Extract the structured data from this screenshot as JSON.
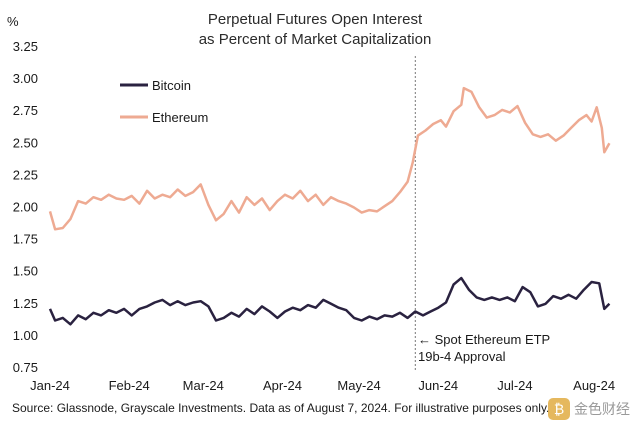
{
  "chart_data": {
    "type": "line",
    "title": [
      "Perpetual Futures Open Interest",
      "as Percent of Market Capitalization"
    ],
    "unit_label": "%",
    "ylim": [
      0.75,
      3.25
    ],
    "y_ticks": [
      "3.25",
      "3.00",
      "2.75",
      "2.50",
      "2.25",
      "2.00",
      "1.75",
      "1.50",
      "1.25",
      "1.00",
      "0.75"
    ],
    "x_ticks": [
      "Jan-24",
      "Feb-24",
      "Mar-24",
      "Apr-24",
      "May-24",
      "Jun-24",
      "Jul-24",
      "Aug-24"
    ],
    "grid": false,
    "legend_position": "top-left",
    "series": [
      {
        "name": "Bitcoin",
        "color": "#2a2240",
        "points": [
          [
            "2024-01-01",
            1.21
          ],
          [
            "2024-01-03",
            1.12
          ],
          [
            "2024-01-06",
            1.14
          ],
          [
            "2024-01-09",
            1.09
          ],
          [
            "2024-01-12",
            1.16
          ],
          [
            "2024-01-15",
            1.13
          ],
          [
            "2024-01-18",
            1.18
          ],
          [
            "2024-01-21",
            1.16
          ],
          [
            "2024-01-24",
            1.2
          ],
          [
            "2024-01-27",
            1.18
          ],
          [
            "2024-01-30",
            1.21
          ],
          [
            "2024-02-02",
            1.16
          ],
          [
            "2024-02-05",
            1.21
          ],
          [
            "2024-02-08",
            1.23
          ],
          [
            "2024-02-11",
            1.26
          ],
          [
            "2024-02-14",
            1.28
          ],
          [
            "2024-02-17",
            1.24
          ],
          [
            "2024-02-20",
            1.27
          ],
          [
            "2024-02-23",
            1.24
          ],
          [
            "2024-02-26",
            1.26
          ],
          [
            "2024-02-29",
            1.27
          ],
          [
            "2024-03-03",
            1.23
          ],
          [
            "2024-03-06",
            1.12
          ],
          [
            "2024-03-09",
            1.14
          ],
          [
            "2024-03-12",
            1.18
          ],
          [
            "2024-03-15",
            1.15
          ],
          [
            "2024-03-18",
            1.21
          ],
          [
            "2024-03-21",
            1.17
          ],
          [
            "2024-03-24",
            1.23
          ],
          [
            "2024-03-27",
            1.19
          ],
          [
            "2024-03-30",
            1.14
          ],
          [
            "2024-04-02",
            1.19
          ],
          [
            "2024-04-05",
            1.22
          ],
          [
            "2024-04-08",
            1.2
          ],
          [
            "2024-04-11",
            1.24
          ],
          [
            "2024-04-14",
            1.22
          ],
          [
            "2024-04-17",
            1.28
          ],
          [
            "2024-04-20",
            1.25
          ],
          [
            "2024-04-23",
            1.22
          ],
          [
            "2024-04-26",
            1.2
          ],
          [
            "2024-04-29",
            1.14
          ],
          [
            "2024-05-02",
            1.12
          ],
          [
            "2024-05-05",
            1.15
          ],
          [
            "2024-05-08",
            1.13
          ],
          [
            "2024-05-11",
            1.16
          ],
          [
            "2024-05-14",
            1.15
          ],
          [
            "2024-05-17",
            1.18
          ],
          [
            "2024-05-20",
            1.14
          ],
          [
            "2024-05-23",
            1.19
          ],
          [
            "2024-05-26",
            1.16
          ],
          [
            "2024-05-29",
            1.19
          ],
          [
            "2024-06-01",
            1.22
          ],
          [
            "2024-06-04",
            1.26
          ],
          [
            "2024-06-07",
            1.4
          ],
          [
            "2024-06-10",
            1.45
          ],
          [
            "2024-06-13",
            1.36
          ],
          [
            "2024-06-16",
            1.3
          ],
          [
            "2024-06-19",
            1.28
          ],
          [
            "2024-06-22",
            1.3
          ],
          [
            "2024-06-25",
            1.28
          ],
          [
            "2024-06-28",
            1.3
          ],
          [
            "2024-07-01",
            1.27
          ],
          [
            "2024-07-04",
            1.38
          ],
          [
            "2024-07-07",
            1.34
          ],
          [
            "2024-07-10",
            1.23
          ],
          [
            "2024-07-13",
            1.25
          ],
          [
            "2024-07-16",
            1.31
          ],
          [
            "2024-07-19",
            1.29
          ],
          [
            "2024-07-22",
            1.32
          ],
          [
            "2024-07-25",
            1.29
          ],
          [
            "2024-07-28",
            1.36
          ],
          [
            "2024-07-31",
            1.42
          ],
          [
            "2024-08-03",
            1.41
          ],
          [
            "2024-08-05",
            1.21
          ],
          [
            "2024-08-07",
            1.25
          ]
        ]
      },
      {
        "name": "Ethereum",
        "color": "#eeaa92",
        "points": [
          [
            "2024-01-01",
            1.97
          ],
          [
            "2024-01-03",
            1.83
          ],
          [
            "2024-01-06",
            1.84
          ],
          [
            "2024-01-09",
            1.91
          ],
          [
            "2024-01-12",
            2.05
          ],
          [
            "2024-01-15",
            2.03
          ],
          [
            "2024-01-18",
            2.08
          ],
          [
            "2024-01-21",
            2.06
          ],
          [
            "2024-01-24",
            2.1
          ],
          [
            "2024-01-27",
            2.07
          ],
          [
            "2024-01-30",
            2.06
          ],
          [
            "2024-02-02",
            2.09
          ],
          [
            "2024-02-05",
            2.03
          ],
          [
            "2024-02-08",
            2.13
          ],
          [
            "2024-02-11",
            2.07
          ],
          [
            "2024-02-14",
            2.1
          ],
          [
            "2024-02-17",
            2.08
          ],
          [
            "2024-02-20",
            2.14
          ],
          [
            "2024-02-23",
            2.09
          ],
          [
            "2024-02-26",
            2.12
          ],
          [
            "2024-02-29",
            2.18
          ],
          [
            "2024-03-03",
            2.02
          ],
          [
            "2024-03-06",
            1.9
          ],
          [
            "2024-03-09",
            1.95
          ],
          [
            "2024-03-12",
            2.05
          ],
          [
            "2024-03-15",
            1.96
          ],
          [
            "2024-03-18",
            2.08
          ],
          [
            "2024-03-21",
            2.02
          ],
          [
            "2024-03-24",
            2.07
          ],
          [
            "2024-03-27",
            1.98
          ],
          [
            "2024-03-30",
            2.05
          ],
          [
            "2024-04-02",
            2.1
          ],
          [
            "2024-04-05",
            2.07
          ],
          [
            "2024-04-08",
            2.13
          ],
          [
            "2024-04-11",
            2.05
          ],
          [
            "2024-04-14",
            2.1
          ],
          [
            "2024-04-17",
            2.02
          ],
          [
            "2024-04-20",
            2.08
          ],
          [
            "2024-04-23",
            2.05
          ],
          [
            "2024-04-26",
            2.03
          ],
          [
            "2024-04-29",
            2.0
          ],
          [
            "2024-05-02",
            1.96
          ],
          [
            "2024-05-05",
            1.98
          ],
          [
            "2024-05-08",
            1.97
          ],
          [
            "2024-05-11",
            2.01
          ],
          [
            "2024-05-14",
            2.05
          ],
          [
            "2024-05-17",
            2.12
          ],
          [
            "2024-05-20",
            2.2
          ],
          [
            "2024-05-22",
            2.35
          ],
          [
            "2024-05-24",
            2.56
          ],
          [
            "2024-05-27",
            2.6
          ],
          [
            "2024-05-30",
            2.65
          ],
          [
            "2024-06-02",
            2.68
          ],
          [
            "2024-06-04",
            2.63
          ],
          [
            "2024-06-07",
            2.75
          ],
          [
            "2024-06-10",
            2.8
          ],
          [
            "2024-06-11",
            2.93
          ],
          [
            "2024-06-14",
            2.9
          ],
          [
            "2024-06-17",
            2.78
          ],
          [
            "2024-06-20",
            2.7
          ],
          [
            "2024-06-23",
            2.72
          ],
          [
            "2024-06-26",
            2.76
          ],
          [
            "2024-06-29",
            2.74
          ],
          [
            "2024-07-02",
            2.79
          ],
          [
            "2024-07-05",
            2.66
          ],
          [
            "2024-07-08",
            2.57
          ],
          [
            "2024-07-11",
            2.55
          ],
          [
            "2024-07-14",
            2.57
          ],
          [
            "2024-07-17",
            2.52
          ],
          [
            "2024-07-20",
            2.56
          ],
          [
            "2024-07-23",
            2.62
          ],
          [
            "2024-07-26",
            2.68
          ],
          [
            "2024-07-29",
            2.72
          ],
          [
            "2024-07-31",
            2.67
          ],
          [
            "2024-08-02",
            2.78
          ],
          [
            "2024-08-04",
            2.62
          ],
          [
            "2024-08-05",
            2.43
          ],
          [
            "2024-08-07",
            2.5
          ]
        ]
      }
    ],
    "annotation": {
      "date": "2024-05-23",
      "line1": "← Spot Ethereum ETP",
      "line2": "19b-4 Approval"
    }
  },
  "source": "Source: Glassnode, Grayscale Investments. Data as of August 7, 2024. For illustrative purposes only.",
  "watermark": {
    "text": "金色财经"
  }
}
